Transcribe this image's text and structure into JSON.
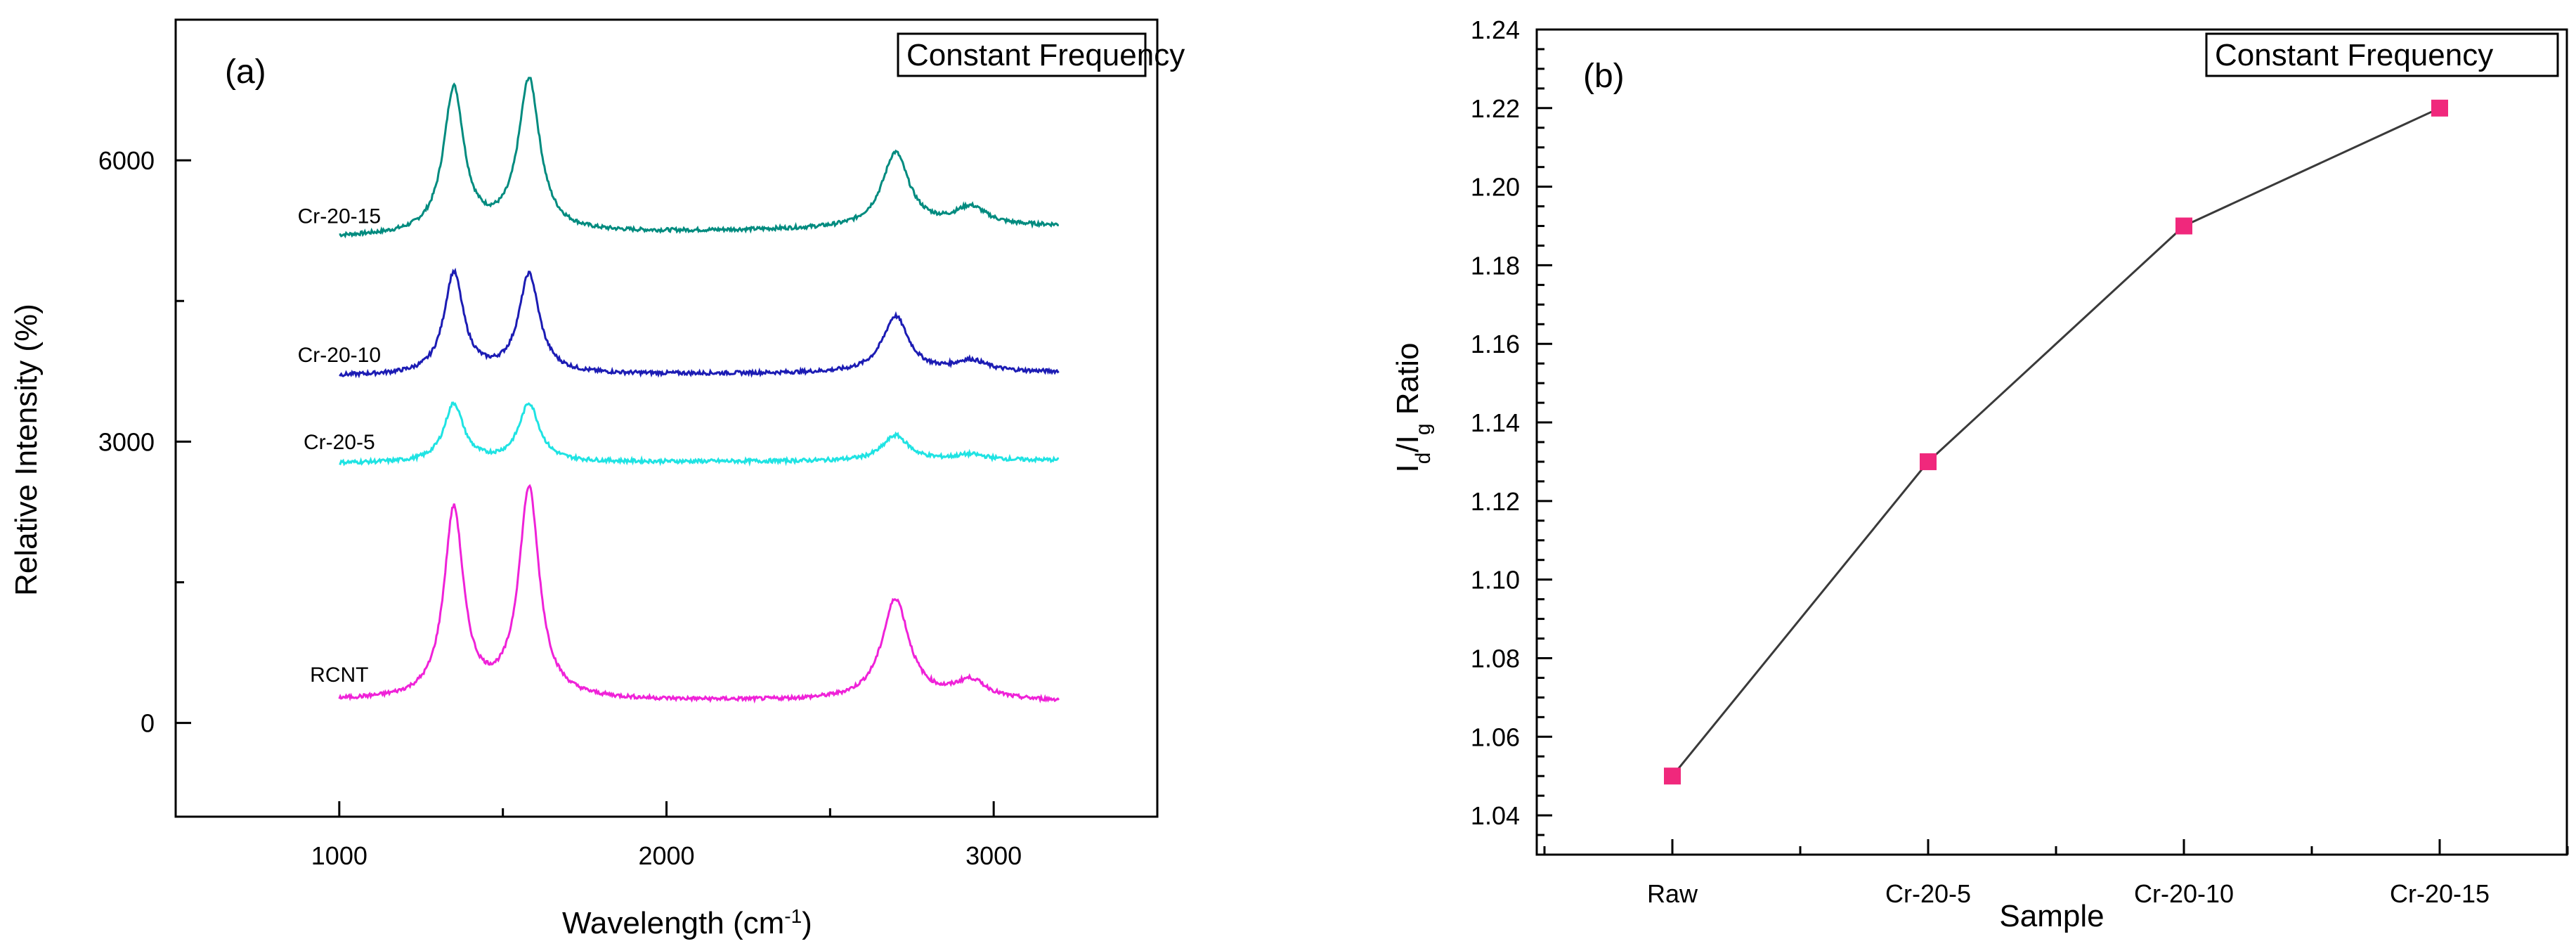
{
  "chart_data": [
    {
      "panel": "(a)",
      "type": "line",
      "xlabel": "Wavelength (cm",
      "xlabel_sup": "-1",
      "xlabel_suffix": ")",
      "ylabel": "Relative Intensity (%)",
      "legend_box": "Constant Frequency",
      "xlim": [
        500,
        3500
      ],
      "ylim": [
        -1000,
        7500
      ],
      "xticks": [
        1000,
        2000,
        3000
      ],
      "yticks": [
        0,
        3000,
        6000
      ],
      "x_range": [
        1000,
        3200
      ],
      "series": [
        {
          "label": "Cr-20-15",
          "color": "#008b7f",
          "baseline": 5180,
          "end_level": 5300,
          "peaks": [
            [
              1350,
              1550,
              38
            ],
            [
              1580,
              1630,
              40
            ],
            [
              2700,
              800,
              50
            ],
            [
              2930,
              200,
              60
            ]
          ],
          "label_x": 1000,
          "label_y": 5330
        },
        {
          "label": "Cr-20-10",
          "color": "#1c1cb4",
          "baseline": 3700,
          "end_level": 3740,
          "peaks": [
            [
              1350,
              1080,
              36
            ],
            [
              1580,
              1060,
              38
            ],
            [
              2700,
              600,
              48
            ],
            [
              2930,
              120,
              60
            ]
          ],
          "label_x": 1000,
          "label_y": 3850
        },
        {
          "label": "Cr-20-5",
          "color": "#1fe3e3",
          "baseline": 2770,
          "end_level": 2800,
          "peaks": [
            [
              1350,
              620,
              36
            ],
            [
              1580,
              620,
              38
            ],
            [
              2700,
              270,
              48
            ],
            [
              2930,
              60,
              60
            ]
          ],
          "label_x": 1000,
          "label_y": 2920
        },
        {
          "label": "RCNT",
          "color": "#ef22d8",
          "baseline": 240,
          "end_level": 230,
          "peaks": [
            [
              1350,
              2020,
              36
            ],
            [
              1580,
              2240,
              38
            ],
            [
              2700,
              1080,
              50
            ],
            [
              2930,
              200,
              60
            ]
          ],
          "label_x": 1000,
          "label_y": 440
        }
      ]
    },
    {
      "panel": "(b)",
      "type": "line",
      "xlabel": "Sample",
      "ylabel_parts": [
        "I",
        "d",
        "/I",
        "g",
        " Ratio"
      ],
      "legend_box": "Constant Frequency",
      "categories": [
        "Raw",
        "Cr-20-5",
        "Cr-20-10",
        "Cr-20-15"
      ],
      "values": [
        1.05,
        1.13,
        1.19,
        1.22
      ],
      "ylim": [
        1.03,
        1.24
      ],
      "yticks": [
        1.04,
        1.06,
        1.08,
        1.1,
        1.12,
        1.14,
        1.16,
        1.18,
        1.2,
        1.22,
        1.24
      ],
      "ytick_labels": [
        "1.04",
        "1.06",
        "1.08",
        "1.10",
        "1.12",
        "1.14",
        "1.16",
        "1.18",
        "1.20",
        "1.22",
        "1.24"
      ],
      "marker_color": "#f0287c",
      "line_color": "#3a3a3a"
    }
  ]
}
